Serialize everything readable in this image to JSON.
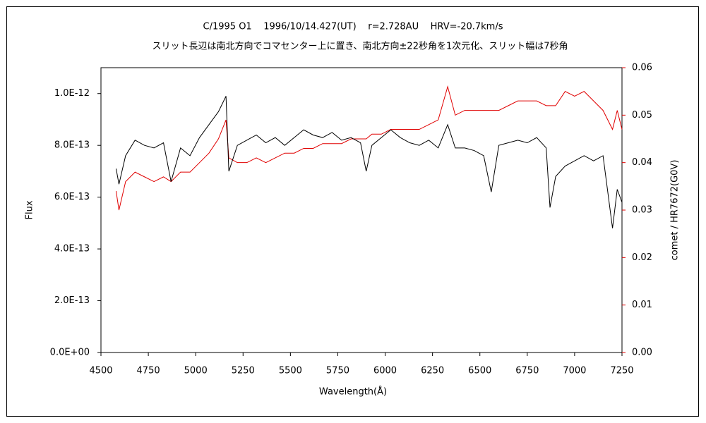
{
  "chart_data": {
    "type": "line",
    "title": "C/1995 O1    1996/10/14.427(UT)    r=2.728AU    HRV=-20.7km/s",
    "subtitle": "スリット長辺は南北方向でコマセンター上に置き、南北方向±22秒角を1次元化、スリット幅は7秒角",
    "x_label": "Wavelength(Å)",
    "y_label": "Flux",
    "y2_label": "comet / HR7672(G0V)",
    "x": [
      4580,
      4595,
      4630,
      4680,
      4730,
      4780,
      4830,
      4870,
      4920,
      4970,
      5020,
      5070,
      5120,
      5160,
      5175,
      5220,
      5270,
      5320,
      5370,
      5420,
      5470,
      5520,
      5570,
      5620,
      5670,
      5720,
      5770,
      5820,
      5870,
      5900,
      5930,
      5980,
      6030,
      6080,
      6130,
      6180,
      6230,
      6280,
      6330,
      6370,
      6420,
      6470,
      6520,
      6560,
      6600,
      6650,
      6700,
      6750,
      6800,
      6850,
      6870,
      6900,
      6950,
      7000,
      7050,
      7100,
      7150,
      7200,
      7225,
      7250
    ],
    "series": [
      {
        "name": "Flux",
        "color": "#000000",
        "axis": "y",
        "values": [
          7.1e-13,
          6.5e-13,
          7.6e-13,
          8.2e-13,
          8e-13,
          7.9e-13,
          8.1e-13,
          6.6e-13,
          7.9e-13,
          7.6e-13,
          8.3e-13,
          8.8e-13,
          9.3e-13,
          9.9e-13,
          7e-13,
          8e-13,
          8.2e-13,
          8.4e-13,
          8.1e-13,
          8.3e-13,
          8e-13,
          8.3e-13,
          8.6e-13,
          8.4e-13,
          8.3e-13,
          8.5e-13,
          8.2e-13,
          8.3e-13,
          8.1e-13,
          7e-13,
          8e-13,
          8.3e-13,
          8.6e-13,
          8.3e-13,
          8.1e-13,
          8e-13,
          8.2e-13,
          7.9e-13,
          8.8e-13,
          7.9e-13,
          7.9e-13,
          7.8e-13,
          7.6e-13,
          6.2e-13,
          8e-13,
          8.1e-13,
          8.2e-13,
          8.1e-13,
          8.3e-13,
          7.9e-13,
          5.6e-13,
          6.8e-13,
          7.2e-13,
          7.4e-13,
          7.6e-13,
          7.4e-13,
          7.6e-13,
          4.8e-13,
          6.3e-13,
          5.8e-13
        ]
      },
      {
        "name": "comet / HR7672(G0V)",
        "color": "#e00000",
        "axis": "y2",
        "values": [
          0.034,
          0.03,
          0.036,
          0.038,
          0.037,
          0.036,
          0.037,
          0.036,
          0.038,
          0.038,
          0.04,
          0.042,
          0.045,
          0.049,
          0.041,
          0.04,
          0.04,
          0.041,
          0.04,
          0.041,
          0.042,
          0.042,
          0.043,
          0.043,
          0.044,
          0.044,
          0.044,
          0.045,
          0.045,
          0.045,
          0.046,
          0.046,
          0.047,
          0.047,
          0.047,
          0.047,
          0.048,
          0.049,
          0.056,
          0.05,
          0.051,
          0.051,
          0.051,
          0.051,
          0.051,
          0.052,
          0.053,
          0.053,
          0.053,
          0.052,
          0.052,
          0.052,
          0.055,
          0.054,
          0.055,
          0.053,
          0.051,
          0.047,
          0.051,
          0.047
        ]
      }
    ],
    "xlim": [
      4500,
      7250
    ],
    "xticks": [
      4500,
      4750,
      5000,
      5250,
      5500,
      5750,
      6000,
      6250,
      6500,
      6750,
      7000,
      7250
    ],
    "ylim": [
      0,
      1.1e-12
    ],
    "yticks": [
      {
        "value": 0,
        "label": "0.0E+00"
      },
      {
        "value": 2e-13,
        "label": "2.0E-13"
      },
      {
        "value": 4e-13,
        "label": "4.0E-13"
      },
      {
        "value": 6e-13,
        "label": "6.0E-13"
      },
      {
        "value": 8e-13,
        "label": "8.0E-13"
      },
      {
        "value": 1e-12,
        "label": "1.0E-12"
      }
    ],
    "y2lim": [
      0,
      0.06
    ],
    "y2ticks": [
      {
        "value": 0,
        "label": "0.00"
      },
      0.01,
      0.02,
      0.03,
      0.04,
      0.05,
      0.06
    ],
    "y2_color": "#e00000",
    "grid": false
  }
}
